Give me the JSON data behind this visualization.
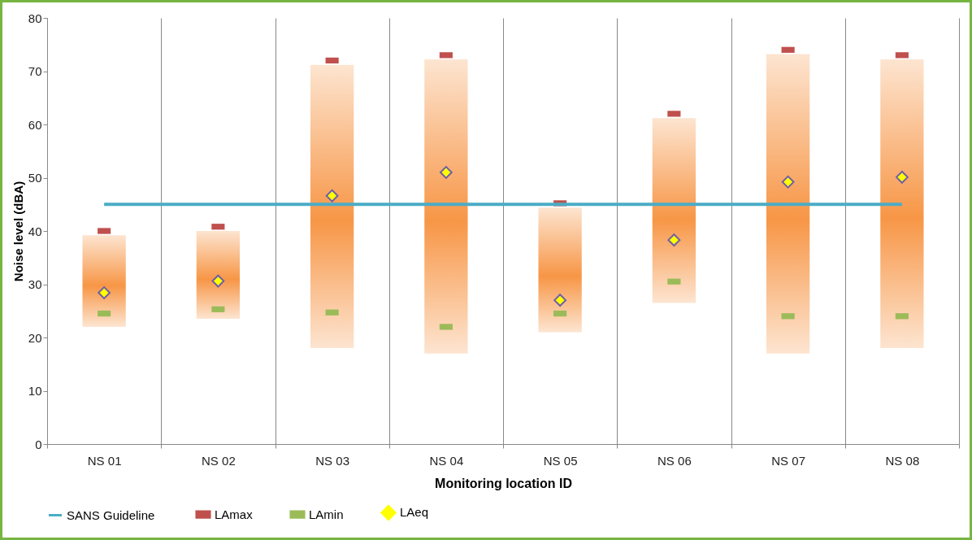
{
  "chart_data": {
    "type": "scatter",
    "xlabel": "Monitoring location ID",
    "ylabel": "Noise level (dBA)",
    "categories": [
      "NS 01",
      "NS 02",
      "NS 03",
      "NS 04",
      "NS 05",
      "NS 06",
      "NS 07",
      "NS 08"
    ],
    "ylim": [
      0,
      80
    ],
    "yticks": [
      0,
      10,
      20,
      30,
      40,
      50,
      60,
      70,
      80
    ],
    "grid": "x",
    "legend": "bottom",
    "series": [
      {
        "type": "bar",
        "color": "#f79646",
        "base": [
          22,
          23.5,
          18,
          17,
          21,
          26.5,
          17,
          18
        ],
        "values": [
          17.2,
          16.5,
          53.2,
          55.2,
          23.4,
          34.7,
          56.2,
          54.2
        ]
      },
      {
        "type": "line",
        "name": "SANS  Guideline",
        "color": "#4bacc6",
        "values": [
          45,
          45,
          45,
          45,
          45,
          45,
          45,
          45
        ]
      },
      {
        "name": "LAmax",
        "color": "#c0504d",
        "values": [
          40,
          40.8,
          72,
          73,
          45.2,
          62,
          74,
          73
        ]
      },
      {
        "name": "LAmin",
        "color": "#9bbb59",
        "values": [
          24.5,
          25.3,
          24.7,
          22,
          24.5,
          30.5,
          24,
          24
        ]
      },
      {
        "name": "LAeq",
        "color": "#ffff00",
        "marker": "diamond",
        "values": [
          28.4,
          30.6,
          46.6,
          51,
          27,
          38.3,
          49.2,
          50.1
        ]
      }
    ]
  }
}
